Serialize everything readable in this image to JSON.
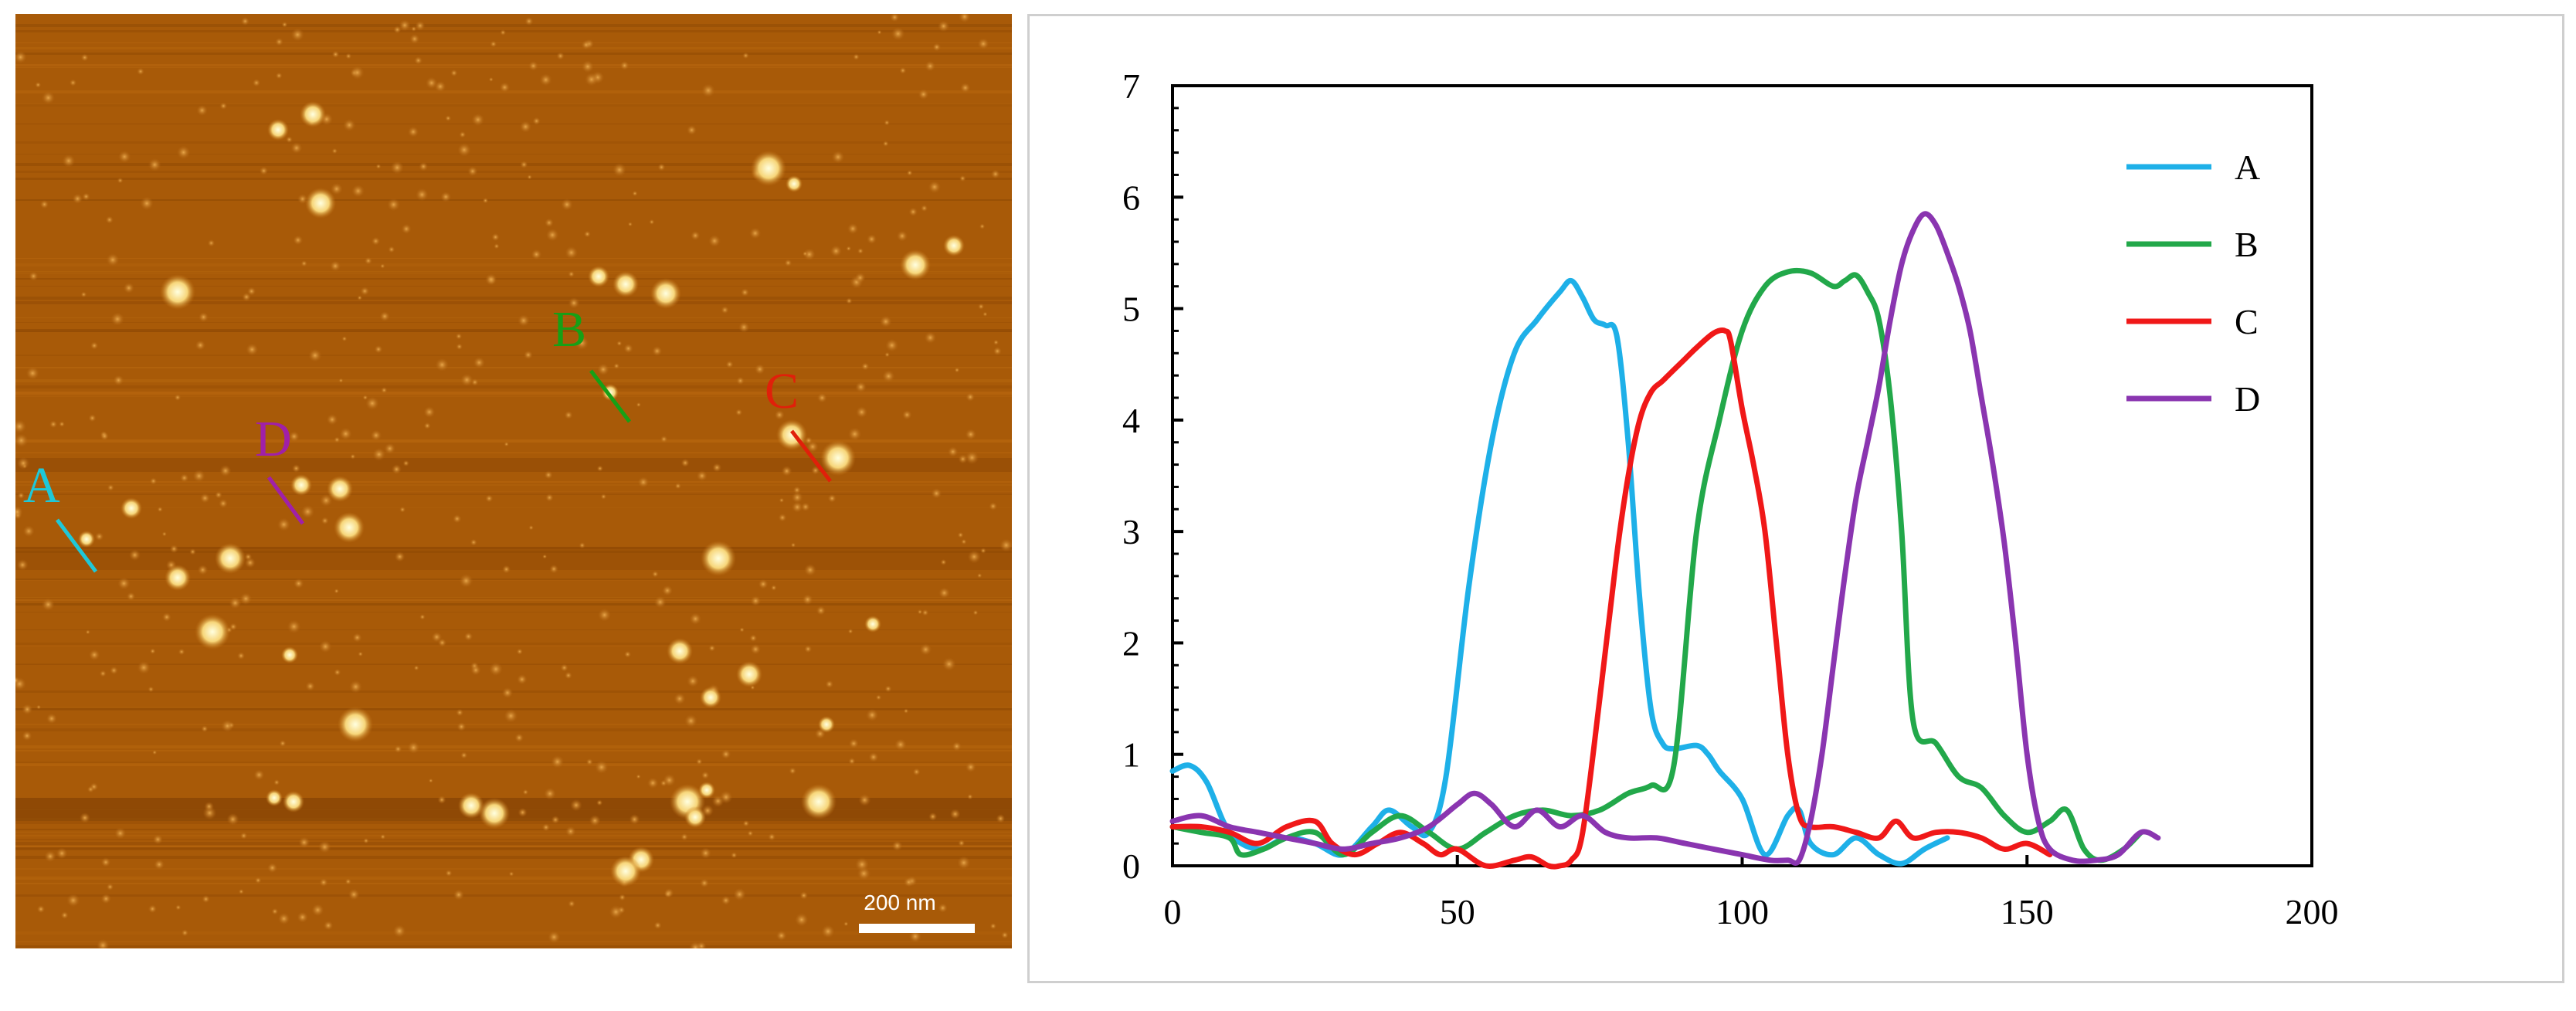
{
  "afm_image": {
    "scale_bar_label": "200 nm",
    "background_color": "#a85a08",
    "profile_markers": [
      {
        "label": "A",
        "color": "#1fc8d8"
      },
      {
        "label": "B",
        "color": "#16a016"
      },
      {
        "label": "C",
        "color": "#e0200a"
      },
      {
        "label": "D",
        "color": "#a020a8"
      }
    ]
  },
  "chart_data": {
    "type": "line",
    "title": "",
    "xlabel": "",
    "ylabel": "",
    "xlim": [
      0,
      200
    ],
    "ylim": [
      0,
      7
    ],
    "x_ticks": [
      "0",
      "50",
      "100",
      "150",
      "200"
    ],
    "y_ticks": [
      "0",
      "1",
      "2",
      "3",
      "4",
      "5",
      "6",
      "7"
    ],
    "legend_position": "top-right",
    "grid": false,
    "series": [
      {
        "name": "A",
        "color": "#1eb0e8",
        "x": [
          0,
          3,
          6,
          10,
          15,
          20,
          25,
          30,
          35,
          38,
          42,
          45,
          48,
          52,
          56,
          60,
          64,
          68,
          70,
          72,
          74,
          76,
          78,
          80,
          82,
          84,
          86,
          88,
          92,
          94,
          96,
          100,
          104,
          108,
          110,
          112,
          116,
          120,
          124,
          128,
          132,
          136
        ],
        "y": [
          0.85,
          0.9,
          0.75,
          0.3,
          0.15,
          0.25,
          0.2,
          0.1,
          0.35,
          0.5,
          0.35,
          0.3,
          0.8,
          2.5,
          3.8,
          4.6,
          4.9,
          5.15,
          5.25,
          5.1,
          4.9,
          4.85,
          4.75,
          3.8,
          2.4,
          1.4,
          1.1,
          1.05,
          1.08,
          1.0,
          0.85,
          0.6,
          0.1,
          0.45,
          0.5,
          0.2,
          0.1,
          0.25,
          0.1,
          0.02,
          0.15,
          0.25
        ]
      },
      {
        "name": "B",
        "color": "#22a84a",
        "x": [
          0,
          5,
          10,
          12,
          16,
          20,
          25,
          30,
          35,
          40,
          45,
          50,
          55,
          60,
          65,
          70,
          75,
          80,
          84,
          88,
          92,
          96,
          100,
          104,
          108,
          112,
          116,
          118,
          120,
          122,
          124,
          126,
          128,
          130,
          134,
          138,
          142,
          146,
          150,
          154,
          157,
          160,
          163,
          167,
          170
        ],
        "y": [
          0.35,
          0.3,
          0.25,
          0.1,
          0.15,
          0.25,
          0.3,
          0.1,
          0.3,
          0.45,
          0.3,
          0.15,
          0.3,
          0.45,
          0.5,
          0.45,
          0.5,
          0.65,
          0.72,
          0.9,
          3.0,
          4.0,
          4.8,
          5.2,
          5.33,
          5.32,
          5.2,
          5.25,
          5.3,
          5.15,
          4.9,
          4.2,
          3.0,
          1.3,
          1.1,
          0.8,
          0.7,
          0.45,
          0.3,
          0.4,
          0.5,
          0.15,
          0.05,
          0.15,
          0.3
        ]
      },
      {
        "name": "C",
        "color": "#f01818",
        "x": [
          0,
          5,
          10,
          15,
          20,
          25,
          28,
          32,
          36,
          40,
          44,
          47,
          50,
          55,
          60,
          63,
          66,
          68,
          70,
          72,
          75,
          78,
          80,
          82,
          84,
          86,
          88,
          90,
          92,
          95,
          97,
          98,
          100,
          102,
          104,
          106,
          108,
          110,
          112,
          116,
          120,
          124,
          127,
          130,
          134,
          138,
          142,
          146,
          150,
          154
        ],
        "y": [
          0.35,
          0.35,
          0.3,
          0.2,
          0.35,
          0.4,
          0.2,
          0.1,
          0.2,
          0.3,
          0.2,
          0.1,
          0.15,
          0.0,
          0.05,
          0.08,
          0.0,
          0.0,
          0.05,
          0.3,
          1.5,
          2.8,
          3.5,
          4.0,
          4.25,
          4.35,
          4.45,
          4.55,
          4.65,
          4.78,
          4.8,
          4.7,
          4.1,
          3.6,
          3.0,
          2.0,
          1.0,
          0.45,
          0.35,
          0.35,
          0.3,
          0.25,
          0.4,
          0.25,
          0.3,
          0.3,
          0.25,
          0.15,
          0.2,
          0.1
        ]
      },
      {
        "name": "D",
        "color": "#8a35b0",
        "x": [
          0,
          5,
          10,
          15,
          20,
          25,
          30,
          35,
          40,
          45,
          50,
          53,
          56,
          60,
          64,
          68,
          72,
          76,
          80,
          85,
          90,
          95,
          100,
          105,
          108,
          110,
          112,
          114,
          116,
          118,
          120,
          122,
          124,
          126,
          128,
          130,
          132,
          134,
          136,
          138,
          140,
          142,
          144,
          146,
          148,
          150,
          152,
          154,
          158,
          162,
          166,
          170,
          173
        ],
        "y": [
          0.4,
          0.45,
          0.35,
          0.3,
          0.25,
          0.2,
          0.15,
          0.2,
          0.25,
          0.35,
          0.55,
          0.65,
          0.55,
          0.35,
          0.5,
          0.35,
          0.45,
          0.3,
          0.25,
          0.25,
          0.2,
          0.15,
          0.1,
          0.05,
          0.05,
          0.05,
          0.4,
          1.0,
          1.8,
          2.6,
          3.3,
          3.8,
          4.3,
          4.9,
          5.4,
          5.7,
          5.85,
          5.75,
          5.5,
          5.2,
          4.8,
          4.2,
          3.6,
          2.9,
          2.0,
          1.0,
          0.4,
          0.15,
          0.05,
          0.05,
          0.1,
          0.3,
          0.25
        ]
      }
    ]
  }
}
